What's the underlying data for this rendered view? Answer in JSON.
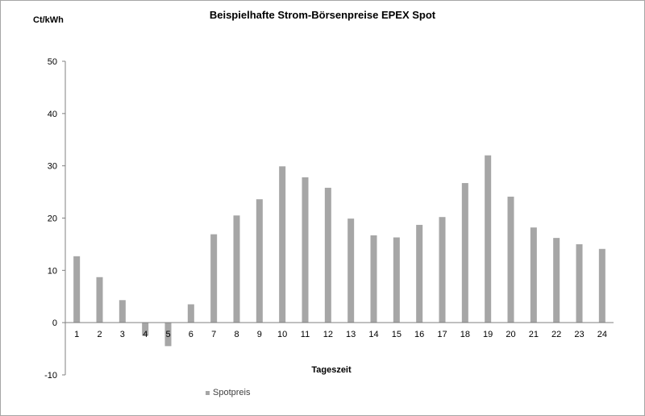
{
  "chart_data": {
    "type": "bar",
    "title": "Beispielhafte Strom-Börsenpreise EPEX Spot",
    "ylabel": "Ct/kWh",
    "xlabel": "Tageszeit",
    "categories": [
      "1",
      "2",
      "3",
      "4",
      "5",
      "6",
      "7",
      "8",
      "9",
      "10",
      "11",
      "12",
      "13",
      "14",
      "15",
      "16",
      "17",
      "18",
      "19",
      "20",
      "21",
      "22",
      "23",
      "24"
    ],
    "series": [
      {
        "name": "Spotpreis",
        "color": "#a6a6a6",
        "values": [
          12.7,
          8.7,
          4.3,
          -2.5,
          -4.5,
          3.5,
          16.9,
          20.5,
          23.6,
          29.9,
          27.8,
          25.8,
          19.9,
          16.7,
          16.3,
          18.7,
          20.2,
          26.7,
          32.0,
          24.1,
          18.2,
          16.2,
          15.0,
          14.1
        ]
      }
    ],
    "ylim": [
      -10,
      50
    ],
    "yticks": [
      -10,
      0,
      10,
      20,
      30,
      40,
      50
    ],
    "grid": false,
    "legend_position": "bottom"
  }
}
